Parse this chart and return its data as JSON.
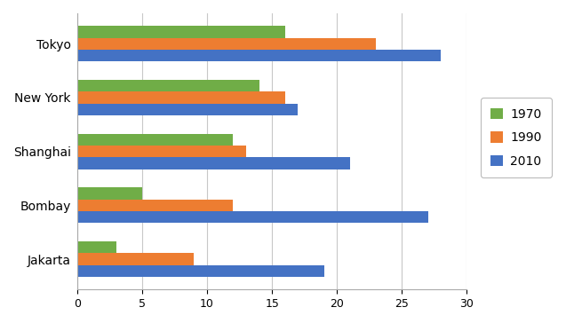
{
  "cities": [
    "Tokyo",
    "New York",
    "Shanghai",
    "Bombay",
    "Jakarta"
  ],
  "years": [
    "1970",
    "1990",
    "2010"
  ],
  "values": {
    "Tokyo": [
      16,
      23,
      28
    ],
    "New York": [
      14,
      16,
      17
    ],
    "Shanghai": [
      12,
      13,
      21
    ],
    "Bombay": [
      5,
      12,
      27
    ],
    "Jakarta": [
      3,
      9,
      19
    ]
  },
  "colors": {
    "1970": "#70ad47",
    "1990": "#ed7d31",
    "2010": "#4472c4"
  },
  "xlim": [
    0,
    30
  ],
  "xticks": [
    0,
    5,
    10,
    15,
    20,
    25,
    30
  ],
  "bar_height": 0.22,
  "legend_labels": [
    "1970",
    "1990",
    "2010"
  ],
  "background_color": "#ffffff",
  "grid_color": "#c8c8c8"
}
